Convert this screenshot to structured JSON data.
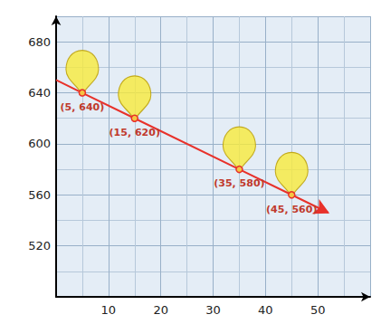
{
  "chart_data": {
    "type": "line",
    "x": [
      0,
      5,
      15,
      35,
      45,
      52
    ],
    "values": [
      650,
      640,
      620,
      580,
      560,
      546
    ],
    "value_labels": [
      null,
      "(5, 640)",
      "(15, 620)",
      "(35, 580)",
      "(45, 560)",
      null
    ],
    "color": "#e8312a",
    "marker": "circle",
    "line_style": "solid",
    "data_labels": true,
    "xlim": [
      0,
      60
    ],
    "xticks": [
      10,
      20,
      30,
      40,
      50
    ],
    "ylim": [
      480,
      700
    ],
    "yticks": [
      520,
      560,
      600,
      640,
      680
    ],
    "grid": true
  }
}
